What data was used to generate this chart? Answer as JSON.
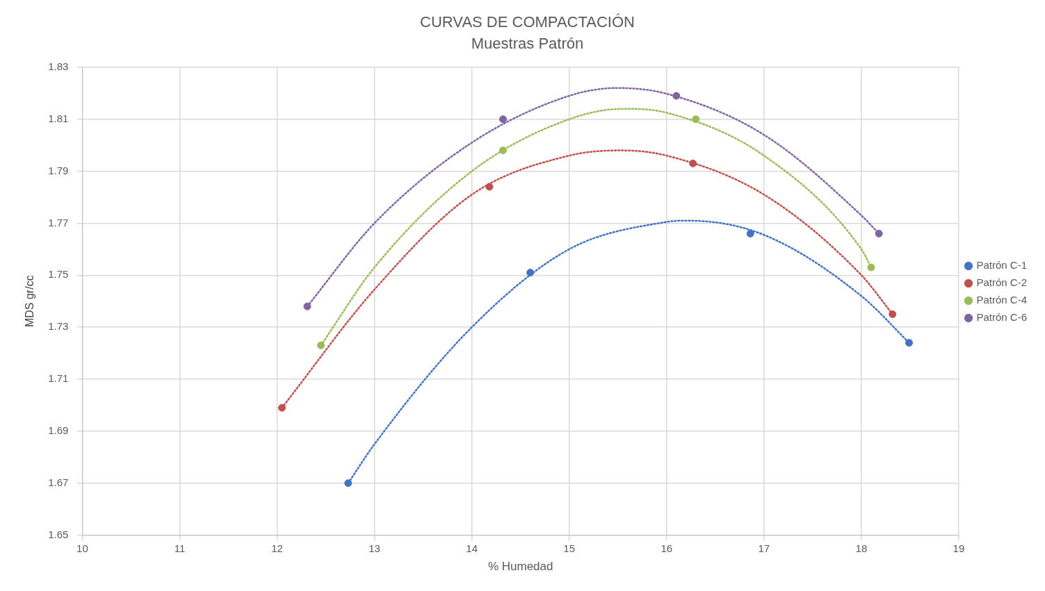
{
  "chart_data": {
    "type": "scatter",
    "title": "CURVAS DE COMPACTACIÓN",
    "subtitle": "Muestras Patrón",
    "xlabel": "% Humedad",
    "ylabel": "MDS gr/cc",
    "xlim": [
      10,
      19
    ],
    "xticks": [
      10,
      11,
      12,
      13,
      14,
      15,
      16,
      17,
      18,
      19
    ],
    "ylim": [
      1.65,
      1.83
    ],
    "yticks": [
      1.65,
      1.67,
      1.69,
      1.71,
      1.73,
      1.75,
      1.77,
      1.79,
      1.81,
      1.83
    ],
    "grid": true,
    "legend": "right",
    "series": [
      {
        "type": "line",
        "color": "#4472c4",
        "line_style": "dotted",
        "marker": "none",
        "x": [
          12.73,
          13,
          14,
          15,
          16,
          16.2,
          17,
          18,
          18.49
        ],
        "values": [
          1.67,
          1.685,
          1.73,
          1.76,
          1.7705,
          1.771,
          1.7655,
          1.742,
          1.724
        ]
      },
      {
        "type": "line",
        "color": "#c0504d",
        "line_style": "dotted",
        "marker": "none",
        "x": [
          12.05,
          13,
          14,
          15,
          15.53,
          16,
          17,
          18,
          18.32
        ],
        "values": [
          1.699,
          1.7445,
          1.781,
          1.796,
          1.798,
          1.796,
          1.781,
          1.75,
          1.735
        ]
      },
      {
        "type": "line",
        "color": "#9bbb59",
        "line_style": "dotted",
        "marker": "none",
        "x": [
          12.45,
          13,
          14,
          15,
          15.56,
          16,
          17,
          18,
          18.1
        ],
        "values": [
          1.723,
          1.753,
          1.79,
          1.81,
          1.814,
          1.8125,
          1.796,
          1.76,
          1.753
        ]
      },
      {
        "type": "line",
        "color": "#8064a2",
        "line_style": "dotted",
        "marker": "none",
        "x": [
          12.31,
          13,
          14,
          15,
          15.49,
          16,
          17,
          18,
          18.18
        ],
        "values": [
          1.738,
          1.77,
          1.801,
          1.819,
          1.822,
          1.8198,
          1.804,
          1.773,
          1.766
        ]
      },
      {
        "type": "scatter",
        "name": "Patrón C-1",
        "color": "#4472c4",
        "marker": "circle",
        "x": [
          12.73,
          14.6,
          16.86,
          18.49
        ],
        "values": [
          1.67,
          1.751,
          1.766,
          1.724
        ]
      },
      {
        "type": "scatter",
        "name": "Patrón C-2",
        "color": "#c0504d",
        "marker": "circle",
        "x": [
          12.05,
          14.18,
          16.27,
          18.32
        ],
        "values": [
          1.699,
          1.784,
          1.793,
          1.735
        ]
      },
      {
        "type": "scatter",
        "name": "Patrón C-4",
        "color": "#9bbb59",
        "marker": "circle",
        "x": [
          12.45,
          14.32,
          16.3,
          18.1
        ],
        "values": [
          1.723,
          1.798,
          1.81,
          1.753
        ]
      },
      {
        "type": "scatter",
        "name": "Patrón C-6",
        "color": "#8064a2",
        "marker": "circle",
        "x": [
          12.31,
          14.32,
          16.1,
          18.18
        ],
        "values": [
          1.738,
          1.81,
          1.819,
          1.766
        ]
      }
    ]
  }
}
